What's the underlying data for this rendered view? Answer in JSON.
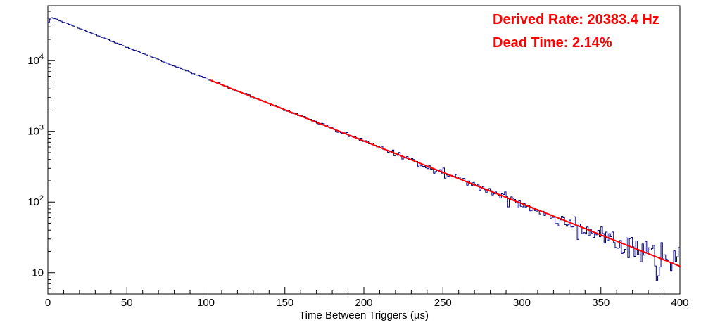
{
  "chart_data": {
    "type": "histogram",
    "title": "",
    "xlabel": "Time Between Triggers (µs)",
    "ylabel": "",
    "xlim": [
      0,
      400
    ],
    "ylim": [
      5,
      60000
    ],
    "y_scale": "log",
    "x_major_ticks": [
      0,
      50,
      100,
      150,
      200,
      250,
      300,
      350,
      400
    ],
    "x_minor_step": 10,
    "y_major_ticks": [
      10,
      100,
      1000,
      10000
    ],
    "n_bins": 400,
    "bin_width_us": 1,
    "grid": false,
    "legend": false,
    "series": {
      "name": "time-between-triggers-histogram",
      "color": "#000080",
      "line_width": 1,
      "model": "A*exp(-x/tau) with poisson noise",
      "amplitude": 43000,
      "tau_us": 49.06,
      "rise_bins": [
        0.82,
        0.93
      ],
      "noise_seed": 42
    },
    "fit": {
      "name": "exponential-fit",
      "color": "#ff0000",
      "line_width": 2,
      "range_us": [
        103,
        400
      ],
      "amplitude": 43000,
      "tau_us": 49.06
    },
    "readout_points": [
      {
        "x": 0,
        "y": 36000
      },
      {
        "x": 50,
        "y": 15500
      },
      {
        "x": 100,
        "y": 5500
      },
      {
        "x": 150,
        "y": 2000
      },
      {
        "x": 200,
        "y": 700
      },
      {
        "x": 250,
        "y": 260
      },
      {
        "x": 300,
        "y": 92
      },
      {
        "x": 350,
        "y": 35
      },
      {
        "x": 400,
        "y": 12
      }
    ],
    "annotations": [
      {
        "text": "Derived Rate: 20383.4 Hz",
        "color": "#ff0000"
      },
      {
        "text": "Dead Time: 2.14%",
        "color": "#ff0000"
      }
    ]
  }
}
